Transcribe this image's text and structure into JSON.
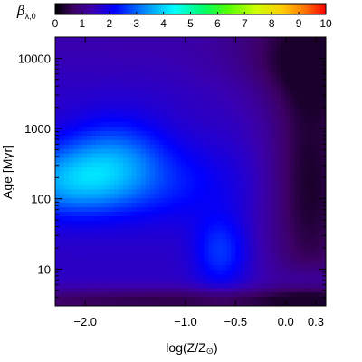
{
  "chart_data": {
    "type": "heatmap",
    "colorbar": {
      "title_main": "β",
      "title_sub": "λ,0",
      "min": 0,
      "max": 10,
      "tick_labels": [
        "0",
        "1",
        "2",
        "3",
        "4",
        "5",
        "6",
        "7",
        "8",
        "9",
        "10"
      ],
      "colormap": [
        "#000000",
        "#3d0066",
        "#3a00b0",
        "#0000ff",
        "#0088ff",
        "#00ffff",
        "#00ff66",
        "#55ff00",
        "#ccff00",
        "#ffcc00",
        "#ff7700",
        "#ff0000"
      ]
    },
    "xlabel_main": "log(Z/Z",
    "xlabel_sun": "⊙",
    "xlabel_close": ")",
    "ylabel_main": "Age ",
    "ylabel_unit": "[Myr]",
    "x_tick_labels": [
      {
        "value": -2.0,
        "text": "−2.0"
      },
      {
        "value": -1.0,
        "text": "−1.0"
      },
      {
        "value": -0.5,
        "text": "−0.5"
      },
      {
        "value": 0.0,
        "text": "0.0"
      },
      {
        "value": 0.3,
        "text": "0.3"
      }
    ],
    "y_tick_labels": [
      {
        "value": 10,
        "text": "10"
      },
      {
        "value": 100,
        "text": "100"
      },
      {
        "value": 1000,
        "text": "1000"
      },
      {
        "value": 10000,
        "text": "10000"
      }
    ],
    "xlim": [
      -2.3,
      0.4
    ],
    "ylim": [
      3,
      20000
    ],
    "yscale": "log",
    "z_peak_value": 3.4,
    "field_description_points": [
      {
        "logZ": -2.2,
        "age": 150,
        "beta": 3.4
      },
      {
        "logZ": -1.7,
        "age": 300,
        "beta": 3.2
      },
      {
        "logZ": -1.0,
        "age": 150,
        "beta": 2.4
      },
      {
        "logZ": -0.6,
        "age": 20,
        "beta": 2.7
      },
      {
        "logZ": -0.5,
        "age": 500,
        "beta": 1.6
      },
      {
        "logZ": 0.3,
        "age": 100,
        "beta": 0.8
      },
      {
        "logZ": 0.3,
        "age": 10000,
        "beta": 0.5
      },
      {
        "logZ": -2.2,
        "age": 4,
        "beta": 0.7
      },
      {
        "logZ": 0.3,
        "age": 7,
        "beta": 2.1
      }
    ]
  }
}
